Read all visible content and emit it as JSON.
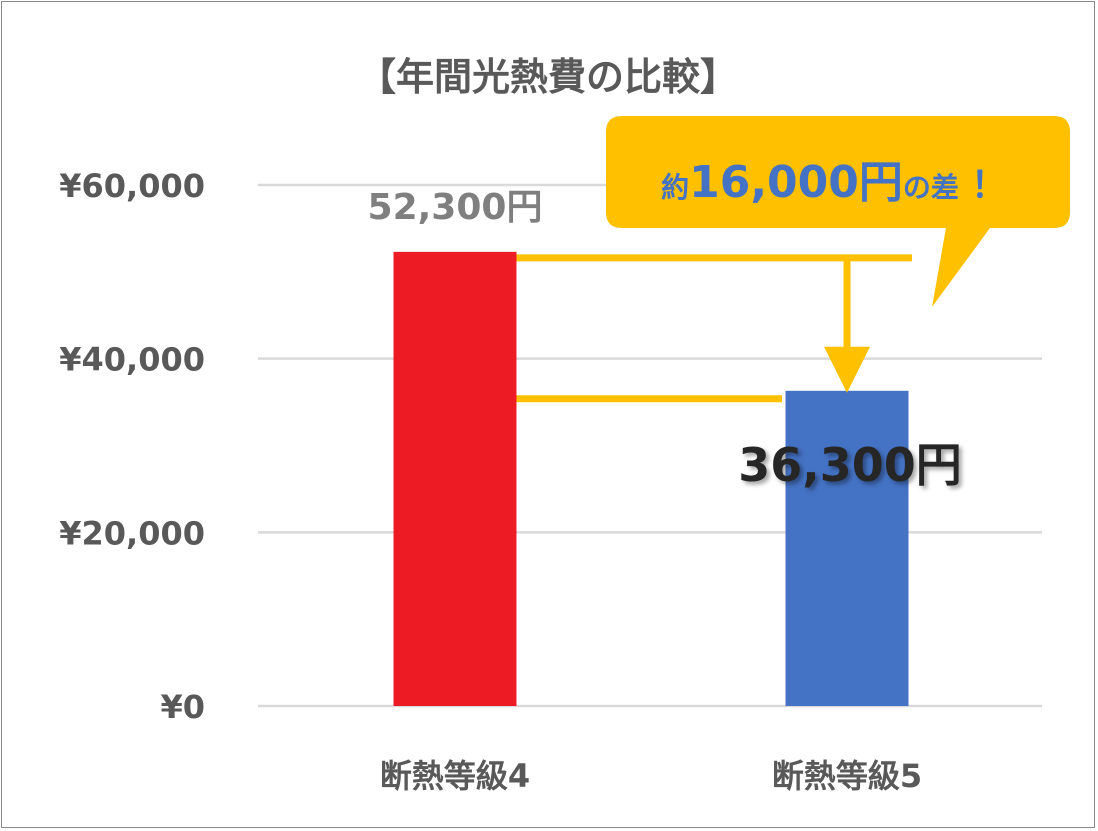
{
  "chart_data": {
    "type": "bar",
    "title": "【年間光熱費の比較】",
    "categories": [
      "断熱等級4",
      "断熱等級5"
    ],
    "values": [
      52300,
      36300
    ],
    "ylim": [
      0,
      60000
    ],
    "yticks": [
      {
        "value": 0,
        "label": "¥0"
      },
      {
        "value": 20000,
        "label": "¥20,000"
      },
      {
        "value": 40000,
        "label": "¥40,000"
      },
      {
        "value": 60000,
        "label": "¥60,000"
      }
    ],
    "data_labels": [
      "52,300円",
      "36,300円"
    ],
    "grid": true,
    "legend": "none",
    "colors": {
      "bar_1": "#ED1C24",
      "bar_2": "#4472C4",
      "grid": "#D9D9D9",
      "annotation": "#FFC000",
      "axis_text": "#595959",
      "callout_text": "#4472C4"
    },
    "annotation": {
      "prefix": "約",
      "amount": "16,000円",
      "suffix": "の差",
      "exclaim": "！"
    }
  }
}
